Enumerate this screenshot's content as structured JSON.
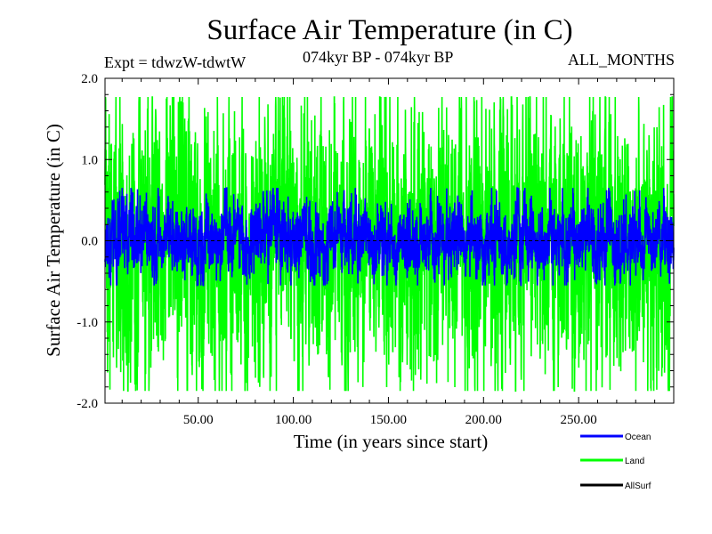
{
  "chart_data": {
    "type": "line",
    "title": "Surface Air Temperature (in C)",
    "subtitle_left": "Expt = tdwzW-tdwtW",
    "subtitle_center": "074kyr BP - 074kyr BP",
    "subtitle_right": "ALL_MONTHS",
    "xlabel": "Time (in years since start)",
    "ylabel": "Surface Air Temperature (in C)",
    "xlim": [
      1,
      300
    ],
    "ylim": [
      -2.0,
      2.0
    ],
    "x_ticks": [
      50,
      100,
      150,
      200,
      250
    ],
    "x_tick_labels": [
      "50.00",
      "100.00",
      "150.00",
      "200.00",
      "250.00"
    ],
    "y_ticks": [
      -2.0,
      -1.0,
      0.0,
      1.0,
      2.0
    ],
    "y_tick_labels": [
      "-2.0",
      "-1.0",
      "0.0",
      "1.0",
      "2.0"
    ],
    "zero_line": true,
    "grid": false,
    "legend_position": "bottom-right",
    "series": [
      {
        "name": "Ocean",
        "color": "#0000ff",
        "amplitude": 0.28,
        "range": [
          -0.55,
          0.65
        ]
      },
      {
        "name": "Land",
        "color": "#00ff00",
        "amplitude": 0.75,
        "range": [
          -1.85,
          1.77
        ]
      },
      {
        "name": "AllSurf",
        "color": "#000000",
        "amplitude": 0.0,
        "range": [
          0,
          0
        ]
      }
    ]
  }
}
